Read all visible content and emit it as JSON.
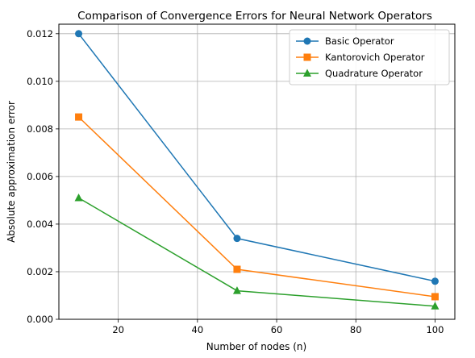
{
  "chart_data": {
    "type": "line",
    "title": "Comparison of Convergence Errors for Neural Network Operators",
    "xlabel": "Number of nodes (n)",
    "ylabel": "Absolute approximation error",
    "x": [
      10,
      50,
      100
    ],
    "xlim": [
      5,
      105
    ],
    "ylim": [
      0,
      0.0124
    ],
    "xticks": [
      20,
      40,
      60,
      80,
      100
    ],
    "xtick_labels": [
      "20",
      "40",
      "60",
      "80",
      "100"
    ],
    "yticks": [
      0,
      0.002,
      0.004,
      0.006,
      0.008,
      0.01,
      0.012
    ],
    "ytick_labels": [
      "0.000",
      "0.002",
      "0.004",
      "0.006",
      "0.008",
      "0.010",
      "0.012"
    ],
    "grid": true,
    "legend_position": "top-right",
    "series": [
      {
        "name": "Basic Operator",
        "values": [
          0.012,
          0.0034,
          0.0016
        ],
        "color": "#1f77b4",
        "marker": "circle"
      },
      {
        "name": "Kantorovich Operator",
        "values": [
          0.0085,
          0.0021,
          0.00095
        ],
        "color": "#ff7f0e",
        "marker": "square"
      },
      {
        "name": "Quadrature Operator",
        "values": [
          0.0051,
          0.0012,
          0.00055
        ],
        "color": "#2ca02c",
        "marker": "triangle"
      }
    ]
  }
}
